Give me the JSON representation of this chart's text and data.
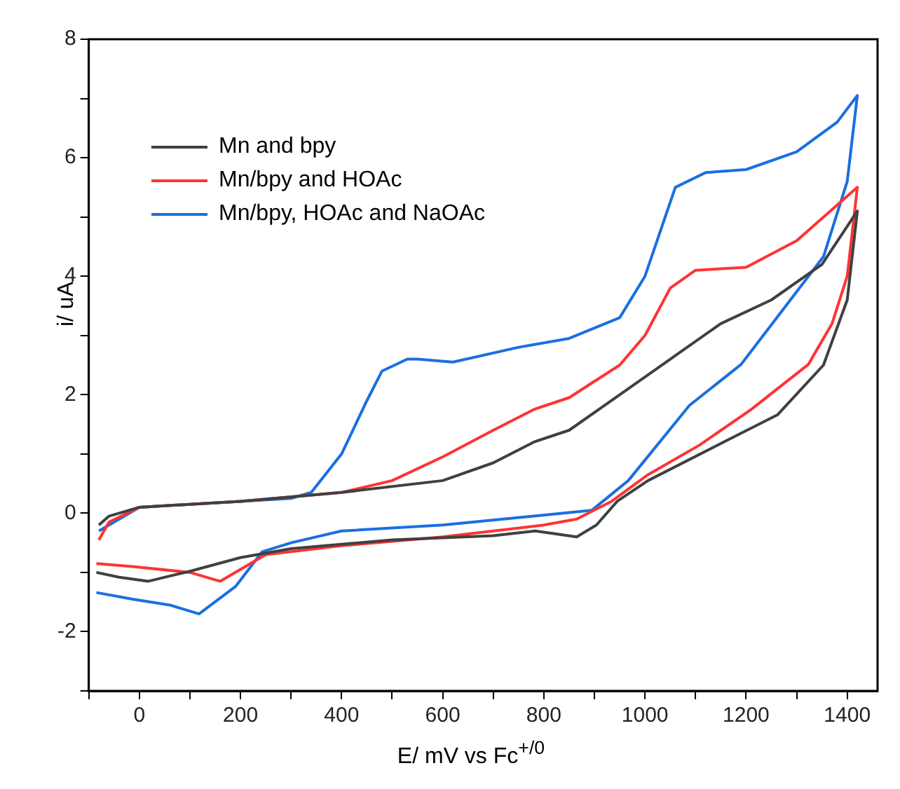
{
  "chart_data": {
    "type": "line",
    "xlabel": "E/ mV vs Fc$^{+/0}$",
    "ylabel": "i/ uA",
    "xlim": [
      -100,
      1460
    ],
    "ylim": [
      -3,
      8
    ],
    "xticks": [
      {
        "value": -100,
        "label": null
      },
      0,
      {
        "value": 100,
        "label": null
      },
      200,
      {
        "value": 300,
        "label": null
      },
      400,
      {
        "value": 500,
        "label": null
      },
      600,
      {
        "value": 700,
        "label": null
      },
      800,
      {
        "value": 900,
        "label": null
      },
      1000,
      {
        "value": 1100,
        "label": null
      },
      1200,
      {
        "value": 1300,
        "label": null
      },
      1400
    ],
    "yticks": [
      {
        "value": -3,
        "label": null
      },
      -2,
      {
        "value": -1,
        "label": null
      },
      0,
      {
        "value": 1,
        "label": null
      },
      2,
      {
        "value": 3,
        "label": null
      },
      4,
      {
        "value": 5,
        "label": null
      },
      6,
      {
        "value": 7,
        "label": null
      },
      8
    ],
    "grid": false,
    "legend": "top left",
    "marker": "none",
    "line_style": "solid",
    "series": [
      {
        "name": "Mn and bpy",
        "color": "#404040",
        "x": [
          -80,
          -60,
          0,
          200,
          400,
          600,
          700,
          780,
          850,
          950,
          1050,
          1150,
          1250,
          1350,
          1420,
          1400,
          1353,
          1262,
          1160,
          1006,
          945,
          904,
          865,
          783,
          700,
          500,
          300,
          200,
          100,
          17,
          -40,
          -85
        ],
        "values": [
          -0.2,
          -0.05,
          0.1,
          0.2,
          0.35,
          0.55,
          0.85,
          1.2,
          1.4,
          2.0,
          2.6,
          3.2,
          3.6,
          4.2,
          5.1,
          3.6,
          2.5,
          1.66,
          1.22,
          0.55,
          0.2,
          -0.2,
          -0.4,
          -0.3,
          -0.38,
          -0.45,
          -0.6,
          -0.75,
          -0.98,
          -1.15,
          -1.08,
          -1.0
        ]
      },
      {
        "name": "Mn/bpy and HOAc",
        "color": "#ff3333",
        "x": [
          -80,
          -60,
          0,
          200,
          400,
          500,
          600,
          700,
          780,
          850,
          950,
          1000,
          1050,
          1100,
          1200,
          1300,
          1420,
          1400,
          1370,
          1323,
          1210,
          1108,
          1006,
          934,
          865,
          800,
          600,
          400,
          250,
          160,
          100,
          -14,
          -85
        ],
        "values": [
          -0.45,
          -0.15,
          0.1,
          0.2,
          0.35,
          0.55,
          0.95,
          1.4,
          1.75,
          1.95,
          2.5,
          3.0,
          3.8,
          4.1,
          4.15,
          4.6,
          5.5,
          4.0,
          3.2,
          2.51,
          1.75,
          1.15,
          0.65,
          0.2,
          -0.1,
          -0.2,
          -0.4,
          -0.55,
          -0.7,
          -1.15,
          -1.0,
          -0.9,
          -0.85
        ]
      },
      {
        "name": "Mn/bpy, HOAc and NaOAc",
        "color": "#1a6fe0",
        "x": [
          -80,
          0,
          200,
          300,
          340,
          400,
          450,
          480,
          530,
          550,
          620,
          750,
          850,
          950,
          1000,
          1060,
          1120,
          1200,
          1300,
          1380,
          1420,
          1400,
          1353,
          1190,
          1088,
          967,
          895,
          780,
          600,
          400,
          300,
          243,
          190,
          118,
          60,
          -14,
          -85
        ],
        "values": [
          -0.3,
          0.1,
          0.2,
          0.25,
          0.35,
          1.0,
          1.9,
          2.4,
          2.6,
          2.6,
          2.55,
          2.8,
          2.95,
          3.3,
          4.0,
          5.5,
          5.75,
          5.8,
          6.1,
          6.6,
          7.05,
          5.6,
          4.33,
          2.51,
          1.82,
          0.55,
          0.05,
          -0.05,
          -0.2,
          -0.3,
          -0.5,
          -0.65,
          -1.24,
          -1.7,
          -1.55,
          -1.45,
          -1.34
        ]
      }
    ]
  }
}
